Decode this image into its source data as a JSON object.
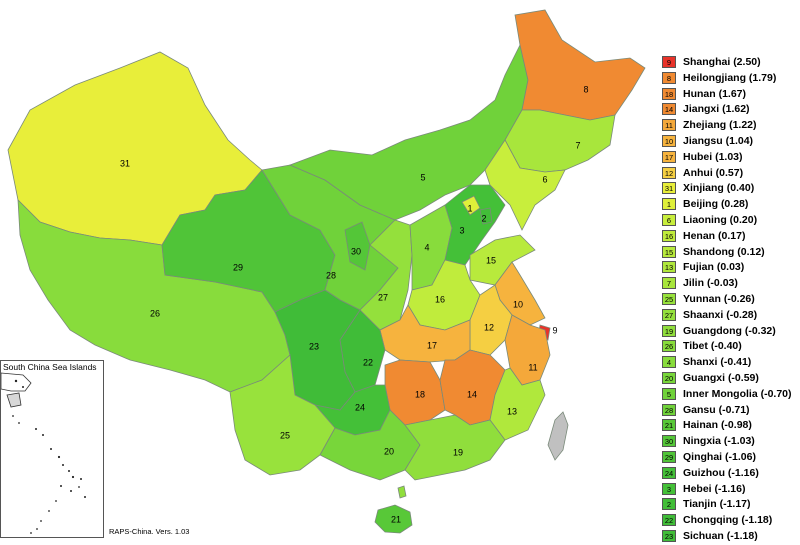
{
  "map": {
    "inset_title": "South China Sea Islands",
    "version": "RAPS-China. Vers. 1.03"
  },
  "legend": [
    {
      "num": "9",
      "name": "Shanghai",
      "value": "(2.50)",
      "color": "#e8332a"
    },
    {
      "num": "8",
      "name": "Heilongjiang",
      "value": "(1.79)",
      "color": "#f08a32"
    },
    {
      "num": "18",
      "name": "Hunan",
      "value": "(1.67)",
      "color": "#f08a32"
    },
    {
      "num": "14",
      "name": "Jiangxi",
      "value": "(1.62)",
      "color": "#f08a32"
    },
    {
      "num": "11",
      "name": "Zhejiang",
      "value": "(1.22)",
      "color": "#f4a83a"
    },
    {
      "num": "10",
      "name": "Jiangsu",
      "value": "(1.04)",
      "color": "#f6b33e"
    },
    {
      "num": "17",
      "name": "Hubei",
      "value": "(1.03)",
      "color": "#f6b33e"
    },
    {
      "num": "12",
      "name": "Anhui",
      "value": "(0.57)",
      "color": "#f5cf42"
    },
    {
      "num": "31",
      "name": "Xinjiang",
      "value": "(0.40)",
      "color": "#e8ee3a"
    },
    {
      "num": "1",
      "name": "Beijing",
      "value": "(0.28)",
      "color": "#dff03a"
    },
    {
      "num": "6",
      "name": "Liaoning",
      "value": "(0.20)",
      "color": "#c8ee3c"
    },
    {
      "num": "16",
      "name": "Henan",
      "value": "(0.17)",
      "color": "#c0ec3c"
    },
    {
      "num": "15",
      "name": "Shandong",
      "value": "(0.12)",
      "color": "#b8ea3c"
    },
    {
      "num": "13",
      "name": "Fujian",
      "value": "(0.03)",
      "color": "#b0e83c"
    },
    {
      "num": "7",
      "name": "Jilin",
      "value": "(-0.03)",
      "color": "#a8e63c"
    },
    {
      "num": "25",
      "name": "Yunnan",
      "value": "(-0.26)",
      "color": "#98e23c"
    },
    {
      "num": "27",
      "name": "Shaanxi",
      "value": "(-0.28)",
      "color": "#94e03c"
    },
    {
      "num": "19",
      "name": "Guangdong",
      "value": "(-0.32)",
      "color": "#90de3c"
    },
    {
      "num": "26",
      "name": "Tibet",
      "value": "(-0.40)",
      "color": "#88dc3c"
    },
    {
      "num": "4",
      "name": "Shanxi",
      "value": "(-0.41)",
      "color": "#88dc3c"
    },
    {
      "num": "20",
      "name": "Guangxi",
      "value": "(-0.59)",
      "color": "#78d63a"
    },
    {
      "num": "5",
      "name": "Inner Mongolia",
      "value": "(-0.70)",
      "color": "#70d23a"
    },
    {
      "num": "28",
      "name": "Gansu",
      "value": "(-0.71)",
      "color": "#70d23a"
    },
    {
      "num": "21",
      "name": "Hainan",
      "value": "(-0.98)",
      "color": "#58c838"
    },
    {
      "num": "30",
      "name": "Ningxia",
      "value": "(-1.03)",
      "color": "#54c638"
    },
    {
      "num": "29",
      "name": "Qinghai",
      "value": "(-1.06)",
      "color": "#50c438"
    },
    {
      "num": "24",
      "name": "Guizhou",
      "value": "(-1.16)",
      "color": "#44c038"
    },
    {
      "num": "3",
      "name": "Hebei",
      "value": "(-1.16)",
      "color": "#44c038"
    },
    {
      "num": "2",
      "name": "Tianjin",
      "value": "(-1.17)",
      "color": "#42be38"
    },
    {
      "num": "22",
      "name": "Chongqing",
      "value": "(-1.18)",
      "color": "#40bc38"
    },
    {
      "num": "23",
      "name": "Sichuan",
      "value": "(-1.18)",
      "color": "#40bc38"
    }
  ],
  "colors": {
    "taiwan": "#c0c0c0",
    "border": "#7a8a7a"
  }
}
